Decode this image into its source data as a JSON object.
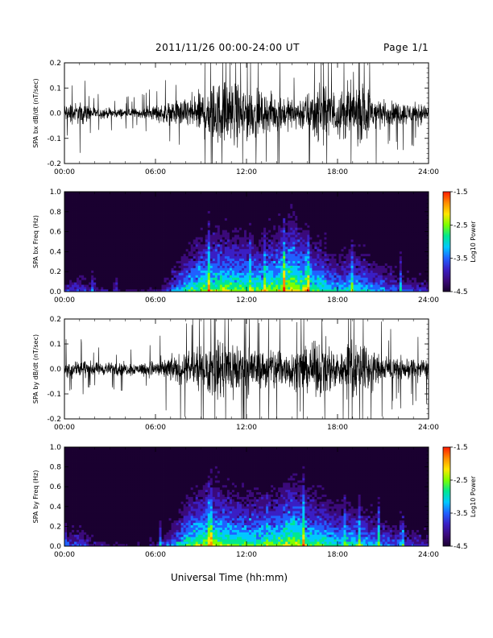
{
  "header": {
    "title": "2011/11/26  00:00-24:00 UT",
    "page": "Page 1/1"
  },
  "xaxis_title": "Universal Time (hh:mm)",
  "x_tick_labels": [
    "00:00",
    "06:00",
    "12:00",
    "18:00",
    "24:00"
  ],
  "colors": {
    "trace": "#000000",
    "colormap": [
      "#1a0030",
      "#3b0a7a",
      "#3a1fc4",
      "#2060ff",
      "#00c8ff",
      "#00e890",
      "#7cff00",
      "#ffe600",
      "#ff8c00",
      "#ff1a00"
    ]
  },
  "chart_data": [
    {
      "type": "line",
      "ylabel": "SPA bx dB/dt (nT/sec)",
      "xlim": [
        0,
        24
      ],
      "ylim": [
        -0.2,
        0.2
      ],
      "yticks": [
        "-0.2",
        "-0.1",
        "0.0",
        "0.1",
        "0.2"
      ],
      "x_ticks_hours": [
        0,
        6,
        12,
        18,
        24
      ],
      "amplitude_envelope": {
        "hours": [
          0,
          1,
          2,
          3,
          4,
          5,
          6,
          7,
          8,
          9,
          10,
          11,
          12,
          13,
          14,
          15,
          16,
          17,
          18,
          19,
          20,
          21,
          22,
          23,
          24
        ],
        "amplitude": [
          0.06,
          0.07,
          0.04,
          0.03,
          0.03,
          0.03,
          0.05,
          0.07,
          0.09,
          0.14,
          0.2,
          0.2,
          0.18,
          0.12,
          0.12,
          0.09,
          0.13,
          0.18,
          0.14,
          0.2,
          0.16,
          0.08,
          0.07,
          0.07,
          0.06
        ]
      }
    },
    {
      "type": "heatmap",
      "ylabel": "SPA bx Freq (Hz)",
      "xlim": [
        0,
        24
      ],
      "ylim": [
        0.0,
        1.0
      ],
      "yticks": [
        "0.0",
        "0.2",
        "0.4",
        "0.6",
        "0.8",
        "1.0"
      ],
      "colorbar": {
        "label": "Log10 Power",
        "range": [
          -4.5,
          -1.5
        ],
        "ticks": [
          "-1.5",
          "-2.5",
          "-3.5",
          "-4.5"
        ]
      },
      "power_profile": {
        "hours": [
          0,
          1,
          2,
          3,
          4,
          5,
          6,
          7,
          8,
          9,
          10,
          11,
          12,
          13,
          14,
          15,
          16,
          17,
          18,
          19,
          20,
          21,
          22,
          23,
          24
        ],
        "log10_power_near_0hz": [
          -3.6,
          -3.3,
          -3.7,
          -3.9,
          -4.0,
          -4.0,
          -3.8,
          -3.3,
          -2.6,
          -2.3,
          -2.2,
          -2.2,
          -2.3,
          -2.4,
          -2.2,
          -1.9,
          -2.3,
          -2.5,
          -2.8,
          -2.6,
          -2.8,
          -3.0,
          -3.2,
          -3.4,
          -3.5
        ]
      }
    },
    {
      "type": "line",
      "ylabel": "SPA by dB/dt (nT/sec)",
      "xlim": [
        0,
        24
      ],
      "ylim": [
        -0.2,
        0.2
      ],
      "yticks": [
        "-0.2",
        "-0.1",
        "0.0",
        "0.1",
        "0.2"
      ],
      "x_ticks_hours": [
        0,
        6,
        12,
        18,
        24
      ],
      "amplitude_envelope": {
        "hours": [
          0,
          1,
          2,
          3,
          4,
          5,
          6,
          7,
          8,
          9,
          10,
          11,
          12,
          13,
          14,
          15,
          16,
          17,
          18,
          19,
          20,
          21,
          22,
          23,
          24
        ],
        "amplitude": [
          0.05,
          0.07,
          0.04,
          0.04,
          0.04,
          0.04,
          0.06,
          0.08,
          0.1,
          0.13,
          0.18,
          0.2,
          0.17,
          0.12,
          0.16,
          0.12,
          0.14,
          0.18,
          0.12,
          0.18,
          0.15,
          0.08,
          0.07,
          0.07,
          0.06
        ]
      }
    },
    {
      "type": "heatmap",
      "ylabel": "SPA by Freq (Hz)",
      "xlim": [
        0,
        24
      ],
      "ylim": [
        0.0,
        1.0
      ],
      "yticks": [
        "0.0",
        "0.2",
        "0.4",
        "0.6",
        "0.8",
        "1.0"
      ],
      "colorbar": {
        "label": "Log10 Power",
        "range": [
          -4.5,
          -1.5
        ],
        "ticks": [
          "-1.5",
          "-2.5",
          "-3.5",
          "-4.5"
        ]
      },
      "power_profile": {
        "hours": [
          0,
          1,
          2,
          3,
          4,
          5,
          6,
          7,
          8,
          9,
          10,
          11,
          12,
          13,
          14,
          15,
          16,
          17,
          18,
          19,
          20,
          21,
          22,
          23,
          24
        ],
        "log10_power_near_0hz": [
          -3.6,
          -3.2,
          -3.7,
          -3.9,
          -4.0,
          -4.0,
          -3.8,
          -3.2,
          -2.5,
          -2.2,
          -2.2,
          -2.3,
          -2.4,
          -2.4,
          -2.3,
          -2.0,
          -2.3,
          -2.4,
          -2.6,
          -2.6,
          -2.8,
          -3.0,
          -3.2,
          -3.4,
          -3.5
        ]
      }
    }
  ]
}
